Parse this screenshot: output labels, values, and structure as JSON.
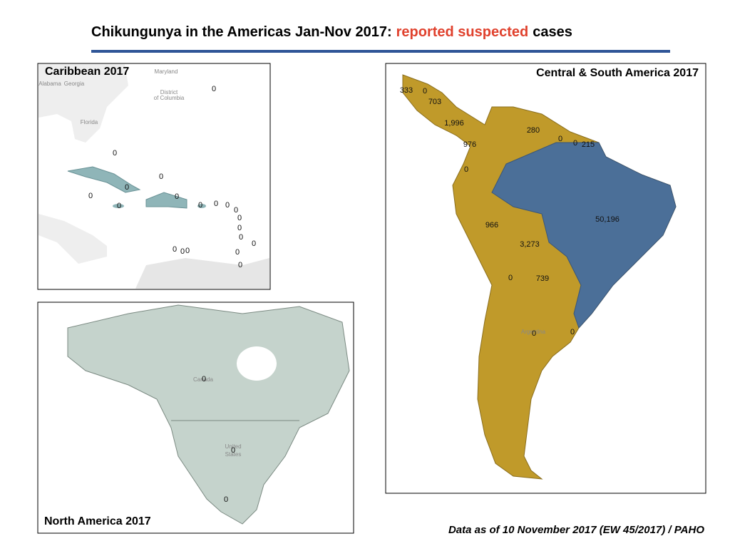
{
  "header": {
    "title_start": "Chikungunya in the Americas Jan-Nov 2017:",
    "title_highlight": "reported suspected",
    "title_end": "cases"
  },
  "panels": [
    {
      "title": "Caribbean 2017",
      "place_labels": [
        "Maryland",
        "Alabama",
        "Georgia",
        "District",
        "of Columbia",
        "Florida"
      ],
      "case_labels": [
        "0",
        "0",
        "0",
        "0",
        "0",
        "0",
        "0",
        "0",
        "0",
        "0",
        "0",
        "0",
        "0",
        "0",
        "0",
        "0",
        "0",
        "0",
        "0",
        "0"
      ]
    },
    {
      "title": "North America 2017",
      "place_labels": [
        "Canada",
        "United",
        "States"
      ],
      "case_labels": [
        "0",
        "0",
        "0"
      ]
    },
    {
      "title": "Central & South America  2017",
      "place_labels": [
        "Argentina"
      ],
      "case_labels": [
        "333",
        "0",
        "703",
        "1,996",
        "976",
        "280",
        "0",
        "0",
        "215",
        "0",
        "50,196",
        "966",
        "3,273",
        "0",
        "739",
        "0",
        "0"
      ]
    }
  ],
  "footer": "Data as of 10 November 2017 (EW 45/2017) / PAHO"
}
